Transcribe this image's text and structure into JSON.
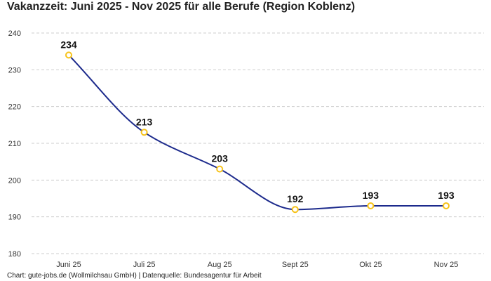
{
  "chart_data": {
    "type": "line",
    "title": "Vakanzzeit: Juni 2025 - Nov 2025 für alle Berufe (Region Koblenz)",
    "categories": [
      "Juni 25",
      "Juli 25",
      "Aug 25",
      "Sept 25",
      "Okt 25",
      "Nov 25"
    ],
    "series": [
      {
        "values": [
          234,
          213,
          203,
          192,
          193,
          193
        ]
      }
    ],
    "ylim": [
      180,
      240
    ],
    "yticks": [
      180,
      190,
      200,
      210,
      220,
      230,
      240
    ],
    "grid": true,
    "smooth": true,
    "line_color": "#1c2a8c",
    "marker_color": "#f7c31a",
    "xlabel": "",
    "ylabel": ""
  },
  "footer": "Chart: gute-jobs.de (Wollmilchsau GmbH) | Datenquelle: Bundesagentur für Arbeit"
}
